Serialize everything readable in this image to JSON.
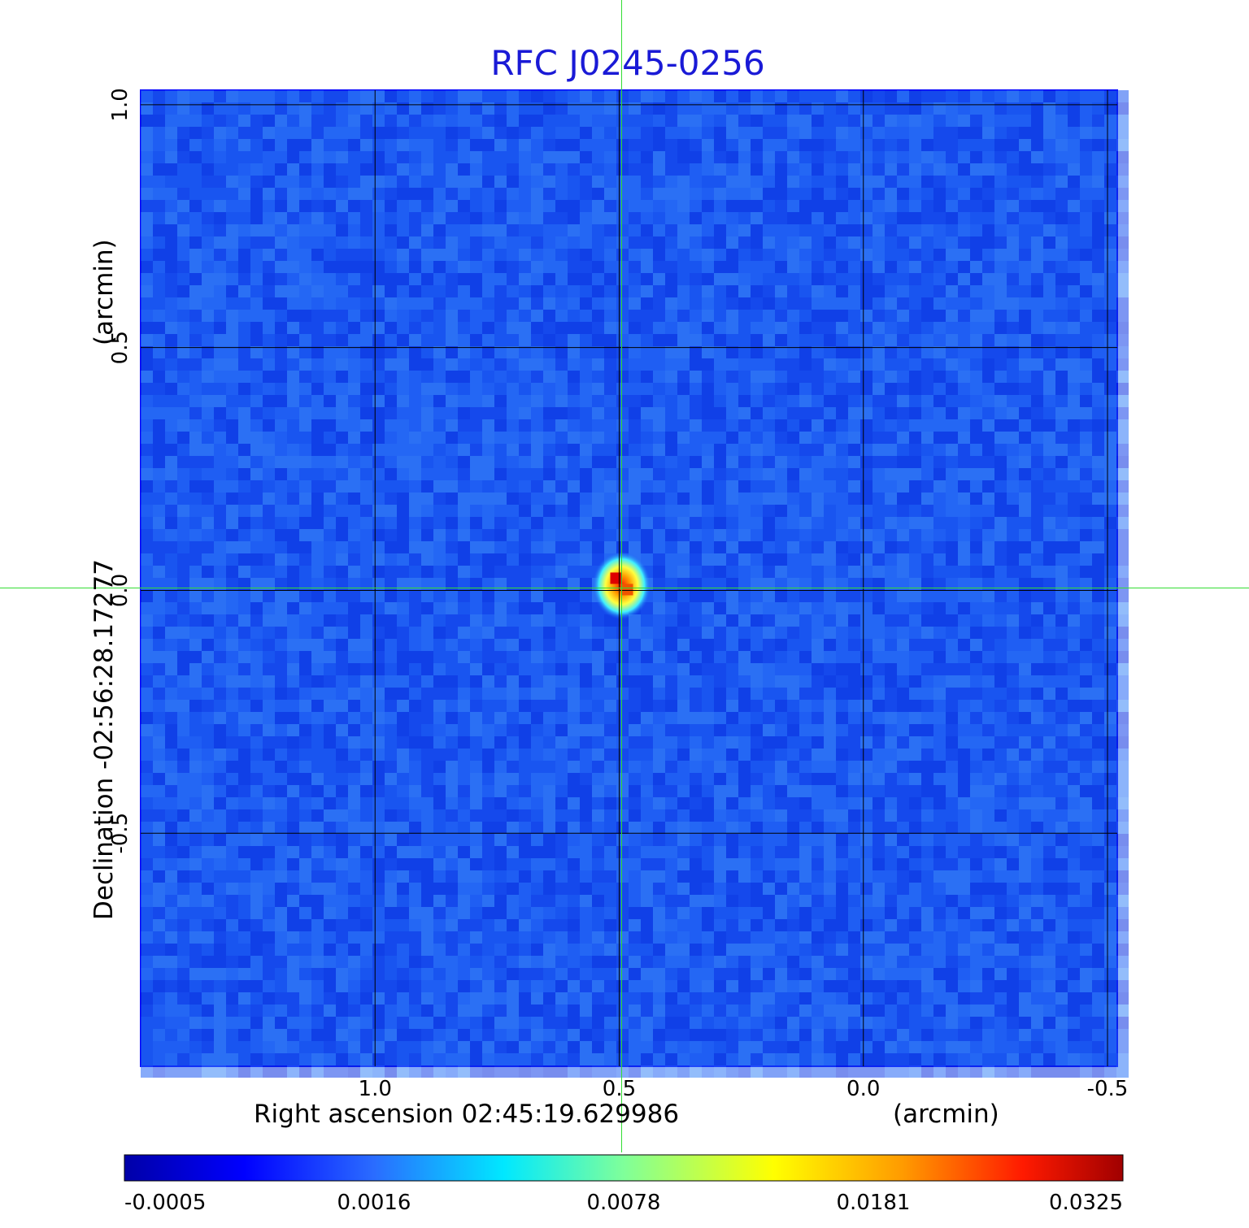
{
  "chart_data": {
    "type": "heatmap",
    "title": "RFC J0245-0256",
    "title_color": "#1a1ad6",
    "xlabel": "Right ascension  02:45:19.629986",
    "xunit": "(arcmin)",
    "ylabel": "Declination  -02:56:28.17277",
    "yunit": "(arcmin)",
    "x_ticks": [
      {
        "value": 1.0,
        "label": "1.0"
      },
      {
        "value": 0.5,
        "label": "0.5"
      },
      {
        "value": 0.0,
        "label": "0.0"
      },
      {
        "value": -0.5,
        "label": "-0.5"
      }
    ],
    "y_ticks": [
      {
        "value": 1.0,
        "label": "1.0"
      },
      {
        "value": 0.5,
        "label": "0.5"
      },
      {
        "value": 0.0,
        "label": "0.0"
      },
      {
        "value": -0.5,
        "label": "-0.5"
      }
    ],
    "xlim": [
      1.48,
      -0.52
    ],
    "ylim": [
      -0.98,
      1.03
    ],
    "x_direction": "decreasing to the right",
    "grid": true,
    "crosshair": {
      "x": 0.495,
      "y": 0.005,
      "color": "#33dd33"
    },
    "source": {
      "x": 0.495,
      "y": 0.01,
      "peak": 0.0325
    },
    "background_level": -0.0002,
    "colormap": "jet",
    "colorbar": {
      "placement": "bottom",
      "tick_labels": [
        "-0.0005",
        "0.0016",
        "0.0078",
        "0.0181",
        "0.0325"
      ],
      "range": [
        -0.0005,
        0.0325
      ]
    }
  }
}
